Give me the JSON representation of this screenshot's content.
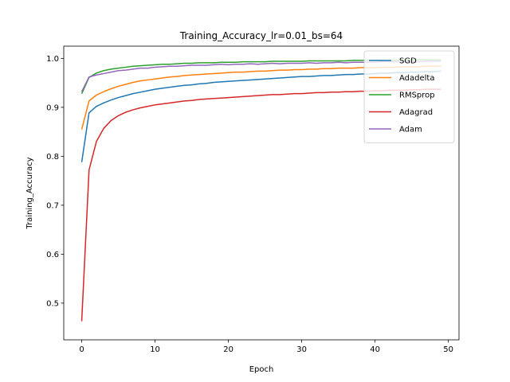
{
  "chart_data": {
    "type": "line",
    "title": "Training_Accuracy_lr=0.01_bs=64",
    "xlabel": "Epoch",
    "ylabel": "Training_Accuracy",
    "xlim": [
      -2.45,
      51.45
    ],
    "ylim": [
      0.425,
      1.025
    ],
    "xticks": [
      0,
      10,
      20,
      30,
      40,
      50
    ],
    "yticks": [
      0.5,
      0.6,
      0.7,
      0.8,
      0.9,
      1.0
    ],
    "xtick_labels": [
      "0",
      "10",
      "20",
      "30",
      "40",
      "50"
    ],
    "ytick_labels": [
      "0.5",
      "0.6",
      "0.7",
      "0.8",
      "0.9",
      "1.0"
    ],
    "grid": false,
    "legend_position": "top-right",
    "series": [
      {
        "name": "SGD",
        "color": "#1f77b4",
        "values": [
          0.788,
          0.889,
          0.902,
          0.909,
          0.915,
          0.92,
          0.924,
          0.928,
          0.931,
          0.934,
          0.937,
          0.939,
          0.941,
          0.943,
          0.945,
          0.946,
          0.948,
          0.949,
          0.951,
          0.952,
          0.953,
          0.954,
          0.955,
          0.956,
          0.957,
          0.958,
          0.959,
          0.96,
          0.961,
          0.962,
          0.963,
          0.963,
          0.964,
          0.965,
          0.965,
          0.966,
          0.967,
          0.967,
          0.968,
          0.968,
          0.969,
          0.97,
          0.97,
          0.971,
          0.971,
          0.972,
          0.972,
          0.973,
          0.973,
          0.974
        ]
      },
      {
        "name": "Adadelta",
        "color": "#ff7f0e",
        "values": [
          0.855,
          0.913,
          0.925,
          0.932,
          0.938,
          0.943,
          0.947,
          0.951,
          0.954,
          0.956,
          0.958,
          0.96,
          0.962,
          0.963,
          0.965,
          0.966,
          0.967,
          0.968,
          0.969,
          0.97,
          0.971,
          0.972,
          0.972,
          0.973,
          0.974,
          0.974,
          0.975,
          0.976,
          0.976,
          0.977,
          0.977,
          0.978,
          0.978,
          0.979,
          0.979,
          0.98,
          0.98,
          0.98,
          0.981,
          0.981,
          0.981,
          0.982,
          0.982,
          0.982,
          0.983,
          0.983,
          0.983,
          0.984,
          0.984,
          0.984
        ]
      },
      {
        "name": "RMSprop",
        "color": "#2ca02c",
        "values": [
          0.928,
          0.961,
          0.97,
          0.975,
          0.978,
          0.98,
          0.982,
          0.984,
          0.985,
          0.986,
          0.987,
          0.988,
          0.988,
          0.989,
          0.99,
          0.99,
          0.991,
          0.991,
          0.991,
          0.992,
          0.992,
          0.992,
          0.993,
          0.993,
          0.993,
          0.993,
          0.994,
          0.994,
          0.994,
          0.994,
          0.994,
          0.995,
          0.995,
          0.995,
          0.995,
          0.995,
          0.995,
          0.996,
          0.996,
          0.996,
          0.996,
          0.996,
          0.996,
          0.996,
          0.996,
          0.997,
          0.997,
          0.997,
          0.997,
          0.997
        ]
      },
      {
        "name": "Adagrad",
        "color": "#d62728",
        "values": [
          0.463,
          0.772,
          0.83,
          0.857,
          0.873,
          0.883,
          0.89,
          0.895,
          0.899,
          0.902,
          0.905,
          0.907,
          0.909,
          0.911,
          0.913,
          0.914,
          0.916,
          0.917,
          0.918,
          0.919,
          0.92,
          0.921,
          0.922,
          0.923,
          0.924,
          0.925,
          0.926,
          0.926,
          0.927,
          0.928,
          0.928,
          0.929,
          0.93,
          0.93,
          0.931,
          0.931,
          0.932,
          0.932,
          0.933,
          0.933,
          0.934,
          0.934,
          0.935,
          0.935,
          0.935,
          0.936,
          0.936,
          0.937,
          0.937,
          0.937
        ]
      },
      {
        "name": "Adam",
        "color": "#9467bd",
        "values": [
          0.932,
          0.962,
          0.966,
          0.969,
          0.972,
          0.975,
          0.976,
          0.978,
          0.98,
          0.98,
          0.982,
          0.983,
          0.984,
          0.984,
          0.985,
          0.986,
          0.986,
          0.986,
          0.987,
          0.988,
          0.987,
          0.988,
          0.988,
          0.989,
          0.988,
          0.989,
          0.99,
          0.989,
          0.99,
          0.99,
          0.99,
          0.991,
          0.99,
          0.991,
          0.991,
          0.992,
          0.991,
          0.992,
          0.992,
          0.992,
          0.992,
          0.993,
          0.993,
          0.993,
          0.993,
          0.993,
          0.993,
          0.994,
          0.994,
          0.994
        ]
      }
    ]
  }
}
